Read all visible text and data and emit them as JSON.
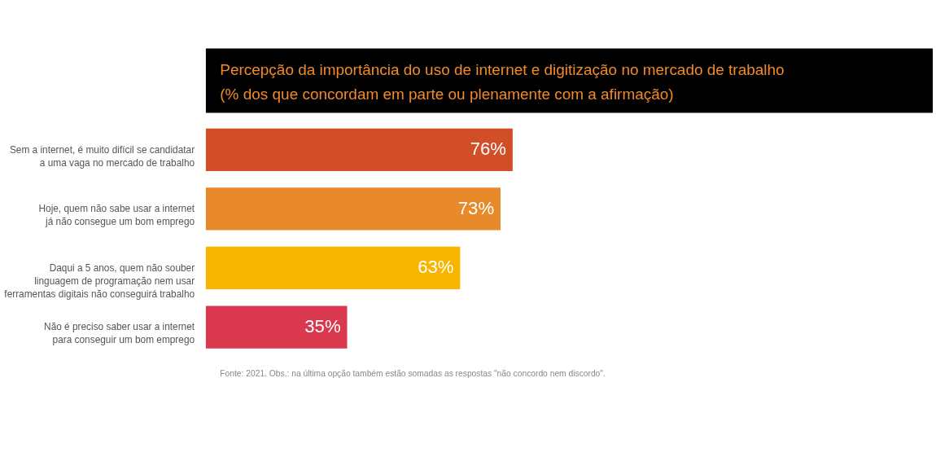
{
  "chart_data": {
    "type": "bar",
    "orientation": "horizontal",
    "title": "Percepção da importância do uso de internet e digitização no mercado de trabalho",
    "subtitle": "(% dos que concordam em parte ou plenamente com a afirmação)",
    "categories": [
      "Sem a internet, é muito difícil se candidatar\na uma vaga no mercado de trabalho",
      "Hoje, quem não sabe usar a internet\njá não consegue um bom emprego",
      "Daqui a 5 anos, quem não souber\nlinguagem de programação nem usar\nferramentas digitais não conseguirá trabalho",
      "Não é preciso saber usar a internet\npara conseguir um bom emprego"
    ],
    "values": [
      76,
      73,
      63,
      35
    ],
    "colors": [
      "#d24e27",
      "#e8892b",
      "#f7b500",
      "#d9384f"
    ],
    "value_labels": [
      "76%",
      "73%",
      "63%",
      "35%"
    ],
    "annotations": [
      "Fonte: 2021. Obs.: na última opção também estão somadas as respostas \"não concordo nem discordo\"."
    ]
  }
}
